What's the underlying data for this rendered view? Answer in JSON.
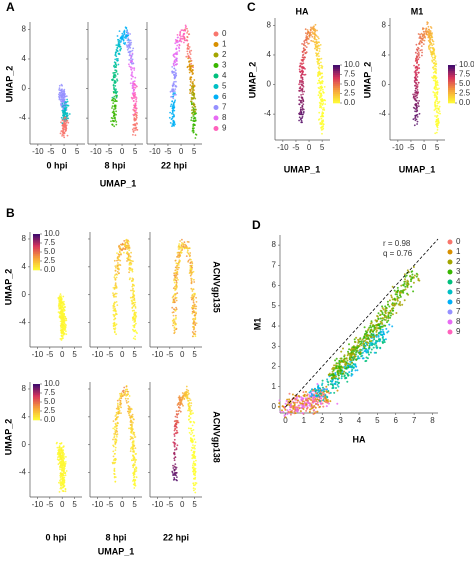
{
  "chart_data": [
    {
      "type": "scatter",
      "label": "A",
      "facets": [
        "0 hpi",
        "8 hpi",
        "22 hpi"
      ],
      "xlabel": "UMAP_1",
      "ylabel": "UMAP_2",
      "xlim": [
        -13,
        8
      ],
      "ylim": [
        -7.5,
        9
      ],
      "xticks": [
        -10,
        -5,
        0,
        5
      ],
      "yticks": [
        -4,
        0,
        4,
        8
      ],
      "series": [
        {
          "name": "0",
          "color": "#F8766D"
        },
        {
          "name": "1",
          "color": "#D89000"
        },
        {
          "name": "2",
          "color": "#A3A500"
        },
        {
          "name": "3",
          "color": "#39B600"
        },
        {
          "name": "4",
          "color": "#00BF7D"
        },
        {
          "name": "5",
          "color": "#00BFC4"
        },
        {
          "name": "6",
          "color": "#00B0F6"
        },
        {
          "name": "7",
          "color": "#9590FF"
        },
        {
          "name": "8",
          "color": "#E76BF3"
        },
        {
          "name": "9",
          "color": "#FF62BC"
        }
      ]
    },
    {
      "type": "scatter",
      "label": "C",
      "facets": [
        "HA",
        "M1"
      ],
      "xlabel": "UMAP_1",
      "ylabel": "UMAP_2",
      "xlim": [
        -13,
        8
      ],
      "ylim": [
        -7.5,
        9
      ],
      "xticks": [
        -10,
        -5,
        0,
        5
      ],
      "yticks": [
        -4,
        0,
        4,
        8
      ],
      "colorbar": {
        "colors": [
          "#FFFF33",
          "#F6A33A",
          "#D8335A",
          "#3A0A6E"
        ],
        "ylim": [
          0,
          10
        ],
        "ticks": [
          {
            "value": 0,
            "label": "0.0"
          },
          {
            "value": 2.5,
            "label": "2.5"
          },
          {
            "value": 5,
            "label": "5.0"
          },
          {
            "value": 7.5,
            "label": "7.5"
          },
          {
            "value": 10,
            "label": "10.0"
          }
        ]
      }
    },
    {
      "type": "scatter",
      "label": "B",
      "facets": [
        "0 hpi",
        "8 hpi",
        "22 hpi"
      ],
      "rows": [
        "ACNVgp135",
        "ACNVgp138"
      ],
      "xlabel": "UMAP_1",
      "ylabel": "UMAP_2",
      "xlim": [
        -13,
        8
      ],
      "ylim": [
        -7.5,
        9
      ],
      "xticks": [
        -10,
        -5,
        0,
        5
      ],
      "yticks": [
        -4,
        0,
        4,
        8
      ],
      "colorbar": {
        "colors": [
          "#FFFF33",
          "#F6A33A",
          "#D8335A",
          "#3A0A6E"
        ],
        "ylim": [
          0,
          10
        ],
        "ticks": [
          {
            "value": 0,
            "label": "0.0"
          },
          {
            "value": 2.5,
            "label": "2.5"
          },
          {
            "value": 5,
            "label": "5.0"
          },
          {
            "value": 7.5,
            "label": "7.5"
          },
          {
            "value": 10,
            "label": "10.0"
          }
        ]
      }
    },
    {
      "type": "scatter",
      "label": "D",
      "xlabel": "HA",
      "ylabel": "M1",
      "xlim": [
        -0.3,
        8.3
      ],
      "ylim": [
        -0.3,
        8.5
      ],
      "xticks": [
        0,
        1,
        2,
        3,
        4,
        5,
        6,
        7,
        8
      ],
      "yticks": [
        0,
        1,
        2,
        3,
        4,
        5,
        6,
        7,
        8
      ],
      "annotations": [
        "r = 0.98",
        "q = 0.76"
      ],
      "series": [
        {
          "name": "0",
          "color": "#F8766D"
        },
        {
          "name": "1",
          "color": "#D89000"
        },
        {
          "name": "2",
          "color": "#A3A500"
        },
        {
          "name": "3",
          "color": "#39B600"
        },
        {
          "name": "4",
          "color": "#00BF7D"
        },
        {
          "name": "5",
          "color": "#00BFC4"
        },
        {
          "name": "6",
          "color": "#00B0F6"
        },
        {
          "name": "7",
          "color": "#9590FF"
        },
        {
          "name": "8",
          "color": "#E76BF3"
        },
        {
          "name": "9",
          "color": "#FF62BC"
        }
      ]
    }
  ]
}
